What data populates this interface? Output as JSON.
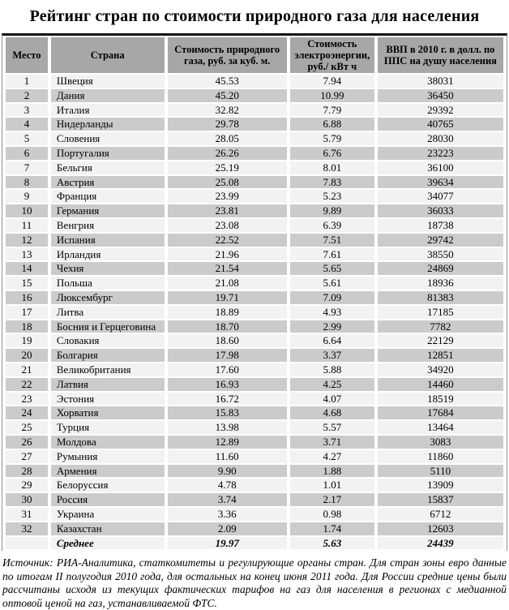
{
  "title": "Рейтинг стран по стоимости природного газа для населения",
  "table": {
    "headers": [
      "Место",
      "Страна",
      "Стоимость природного газа, руб. за куб. м.",
      "Стоимость электроэнергии, руб./ кВт ч",
      "ВВП в 2010 г. в долл. по ППС на душу населения"
    ],
    "column_names": [
      "rank-cell",
      "country-cell",
      "gas-price-cell",
      "electricity-price-cell",
      "gdp-cell"
    ],
    "rows": [
      [
        "1",
        "Швеция",
        "45.53",
        "7.94",
        "38031"
      ],
      [
        "2",
        "Дания",
        "45.20",
        "10.99",
        "36450"
      ],
      [
        "3",
        "Италия",
        "32.82",
        "7.79",
        "29392"
      ],
      [
        "4",
        "Нидерланды",
        "29.78",
        "6.88",
        "40765"
      ],
      [
        "5",
        "Словения",
        "28.05",
        "5.79",
        "28030"
      ],
      [
        "6",
        "Португалия",
        "26.26",
        "6.76",
        "23223"
      ],
      [
        "7",
        "Бельгия",
        "25.19",
        "8.01",
        "36100"
      ],
      [
        "8",
        "Австрия",
        "25.08",
        "7.83",
        "39634"
      ],
      [
        "9",
        "Франция",
        "23.99",
        "5.23",
        "34077"
      ],
      [
        "10",
        "Германия",
        "23.81",
        "9.89",
        "36033"
      ],
      [
        "11",
        "Венгрия",
        "23.08",
        "6.39",
        "18738"
      ],
      [
        "12",
        "Испания",
        "22.52",
        "7.51",
        "29742"
      ],
      [
        "13",
        "Ирландия",
        "21.96",
        "7.61",
        "38550"
      ],
      [
        "14",
        "Чехия",
        "21.54",
        "5.65",
        "24869"
      ],
      [
        "15",
        "Польша",
        "21.08",
        "5.61",
        "18936"
      ],
      [
        "16",
        "Люксембург",
        "19.71",
        "7.09",
        "81383"
      ],
      [
        "17",
        "Литва",
        "18.89",
        "4.93",
        "17185"
      ],
      [
        "18",
        "Босния и Герцеговина",
        "18.70",
        "2.99",
        "7782"
      ],
      [
        "19",
        "Словакия",
        "18.60",
        "6.64",
        "22129"
      ],
      [
        "20",
        "Болгария",
        "17.98",
        "3.37",
        "12851"
      ],
      [
        "21",
        "Великобритания",
        "17.60",
        "5.88",
        "34920"
      ],
      [
        "22",
        "Латвия",
        "16.93",
        "4.25",
        "14460"
      ],
      [
        "23",
        "Эстония",
        "16.72",
        "4.07",
        "18519"
      ],
      [
        "24",
        "Хорватия",
        "15.83",
        "4.68",
        "17684"
      ],
      [
        "25",
        "Турция",
        "13.98",
        "5.57",
        "13464"
      ],
      [
        "26",
        "Молдова",
        "12.89",
        "3.71",
        "3083"
      ],
      [
        "27",
        "Румыния",
        "11.60",
        "4.27",
        "11860"
      ],
      [
        "28",
        "Армения",
        "9.90",
        "1.88",
        "5110"
      ],
      [
        "29",
        "Белоруссия",
        "4.78",
        "1.01",
        "13909"
      ],
      [
        "30",
        "Россия",
        "3.74",
        "2.17",
        "15837"
      ],
      [
        "31",
        "Украина",
        "3.36",
        "0.98",
        "6712"
      ],
      [
        "32",
        "Казахстан",
        "2.09",
        "1.74",
        "12603"
      ]
    ],
    "summary_row": [
      "",
      "Среднее",
      "19.97",
      "5.63",
      "24439"
    ]
  },
  "source_note": "Источник: РИА-Аналитика, статкомитеты и регулирующие органы стран. Для стран зоны евро данные по итогам II полугодия 2010 года, для остальных на конец июня 2011 года. Для России средние цены были рассчитаны исходя из текущих фактических тарифов на газ для населения в регионах с медианной оптовой ценой на газ, устанавливаемой ФТС.",
  "colors": {
    "header_bg": "#a7a7a7",
    "row_light": "#f2f2f2",
    "row_dark": "#cbcbcb",
    "top_border": "#151515",
    "side_border": "#909090",
    "text": "#000000"
  }
}
